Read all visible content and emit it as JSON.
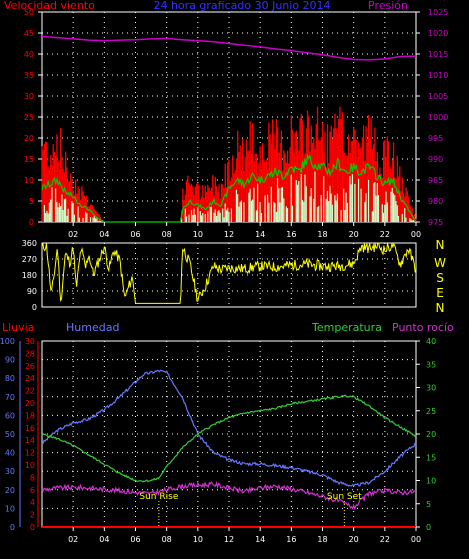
{
  "colors": {
    "wind": "#ff0000",
    "windAvg": "#00cc00",
    "windMin": "#ccffcc",
    "pressure": "#cc00cc",
    "title": "#3333ff",
    "humidity": "#6677ff",
    "temperature": "#33cc33",
    "dewpoint": "#cc33cc",
    "rain": "#ff0000",
    "direction": "#ffff00",
    "axisText": "#ffffff"
  },
  "header": {
    "left": "Velocidad viento",
    "center": "24 hora graficado  30 Junio 2014",
    "right": "Presión"
  },
  "middle": {
    "compass": [
      "N",
      "W",
      "S",
      "E",
      "N"
    ]
  },
  "bottom": {
    "left": "Lluvia",
    "left2": "Humedad",
    "right1": "Temperatura",
    "right2": "Punto rocío",
    "sunrise": "Sun Rise",
    "sunset": "Sun Set"
  },
  "chart_data": [
    {
      "type": "line",
      "name": "wind-pressure",
      "x_ticks": [
        "02",
        "04",
        "06",
        "08",
        "10",
        "12",
        "14",
        "16",
        "18",
        "20",
        "22",
        "00"
      ],
      "y_left_ticks": [
        0,
        5,
        10,
        15,
        20,
        25,
        30,
        35,
        40,
        45,
        50
      ],
      "y_right_ticks": [
        975,
        980,
        985,
        990,
        995,
        1000,
        1005,
        1010,
        1015,
        1020,
        1025
      ],
      "ylim_left": [
        0,
        50
      ],
      "ylim_right": [
        975,
        1025
      ],
      "xlim_hours": [
        0,
        24
      ],
      "grid": true,
      "series": [
        {
          "name": "Presión",
          "axis": "right",
          "x": [
            0,
            1,
            2,
            3,
            4,
            5,
            6,
            7,
            8,
            9,
            10,
            11,
            12,
            13,
            14,
            15,
            16,
            17,
            18,
            19,
            20,
            21,
            22,
            23,
            24
          ],
          "values": [
            1019.2,
            1018.9,
            1018.6,
            1018.3,
            1018.2,
            1018.3,
            1018.4,
            1018.6,
            1018.7,
            1018.4,
            1018.2,
            1017.9,
            1017.5,
            1017.1,
            1016.7,
            1016.2,
            1015.8,
            1015.3,
            1014.8,
            1014.2,
            1013.7,
            1013.6,
            1013.8,
            1014.4,
            1014.5
          ]
        },
        {
          "name": "gust",
          "axis": "left",
          "x": [
            0,
            0.5,
            1,
            1.5,
            2,
            2.5,
            3,
            3.5,
            4,
            8.9,
            9,
            9.5,
            10,
            10.5,
            11,
            11.5,
            12,
            12.5,
            13,
            13.5,
            14,
            14.5,
            15,
            15.5,
            16,
            16.5,
            17,
            17.5,
            18,
            18.5,
            19,
            19.5,
            20,
            20.5,
            21,
            21.5,
            22,
            22.5,
            23,
            23.5,
            24
          ],
          "values": [
            22,
            20,
            24,
            16,
            12,
            9,
            6,
            3,
            0,
            0,
            7,
            12,
            9,
            8,
            11,
            10,
            17,
            21,
            20,
            23,
            20,
            22,
            23,
            21,
            25,
            22,
            28,
            26,
            24,
            22,
            26,
            23,
            24,
            22,
            25,
            21,
            18,
            20,
            12,
            6,
            1
          ]
        },
        {
          "name": "average",
          "axis": "left",
          "x": [
            0,
            0.5,
            1,
            1.5,
            2,
            2.5,
            3,
            3.5,
            4,
            8.9,
            9,
            9.5,
            10,
            10.5,
            11,
            11.5,
            12,
            12.5,
            13,
            13.5,
            14,
            14.5,
            15,
            15.5,
            16,
            16.5,
            17,
            17.5,
            18,
            18.5,
            19,
            19.5,
            20,
            20.5,
            21,
            21.5,
            22,
            22.5,
            23,
            23.5,
            24
          ],
          "values": [
            8,
            9,
            10,
            7,
            6,
            4,
            3,
            1,
            0,
            0,
            3,
            5,
            4,
            3,
            5,
            4,
            8,
            10,
            9,
            11,
            10,
            11,
            12,
            11,
            13,
            12,
            15,
            14,
            13,
            12,
            14,
            12,
            13,
            12,
            13,
            11,
            9,
            10,
            6,
            3,
            0
          ]
        }
      ]
    },
    {
      "type": "line",
      "name": "wind-direction",
      "y_ticks": [
        0,
        90,
        180,
        270,
        360
      ],
      "ylim": [
        0,
        360
      ],
      "xlim_hours": [
        0,
        24
      ],
      "grid": true,
      "series": [
        {
          "name": "direction",
          "x": [
            0,
            0.3,
            0.6,
            1,
            1.2,
            1.5,
            1.8,
            2,
            2.2,
            2.5,
            2.8,
            3,
            3.3,
            3.6,
            4,
            4.3,
            4.6,
            5,
            5.3,
            5.8,
            6,
            7,
            8,
            8.9,
            9,
            9.2,
            9.5,
            10,
            10.5,
            11,
            11.5,
            12,
            13,
            14,
            15,
            16,
            17,
            18,
            19,
            20,
            20.5,
            21,
            21.5,
            22,
            22.5,
            23,
            23.5,
            24
          ],
          "values": [
            330,
            350,
            60,
            340,
            20,
            300,
            250,
            340,
            100,
            330,
            220,
            300,
            180,
            250,
            340,
            210,
            320,
            260,
            50,
            170,
            20,
            20,
            20,
            20,
            340,
            300,
            240,
            40,
            120,
            230,
            210,
            220,
            215,
            230,
            225,
            235,
            240,
            230,
            230,
            245,
            340,
            330,
            345,
            320,
            350,
            240,
            330,
            210
          ]
        }
      ]
    },
    {
      "type": "line",
      "name": "humidity-temperature",
      "x_ticks": [
        "02",
        "04",
        "06",
        "08",
        "10",
        "12",
        "14",
        "16",
        "18",
        "20",
        "22",
        "00"
      ],
      "y_humidity_ticks": [
        0,
        10,
        20,
        30,
        40,
        50,
        60,
        70,
        80,
        90,
        100
      ],
      "y_rain_ticks": [
        0,
        2,
        4,
        6,
        8,
        10,
        12,
        14,
        16,
        18,
        20,
        22,
        24,
        26,
        28,
        30
      ],
      "y_temp_ticks": [
        0,
        5,
        10,
        15,
        20,
        25,
        30,
        35,
        40
      ],
      "ylim_humidity": [
        0,
        100
      ],
      "ylim_temp": [
        0,
        40
      ],
      "ylim_rain": [
        0,
        30
      ],
      "xlim_hours": [
        0,
        24
      ],
      "grid": true,
      "series": [
        {
          "name": "Humedad",
          "axis": "humidity",
          "x": [
            0,
            1,
            2,
            3,
            4,
            5,
            6,
            6.5,
            7,
            7.5,
            8,
            9,
            10,
            11,
            12,
            13,
            14,
            15,
            16,
            17,
            18,
            19,
            19.5,
            20,
            21,
            22,
            23,
            24
          ],
          "values": [
            45,
            52,
            56,
            58,
            63,
            70,
            78,
            82,
            83,
            84,
            83,
            70,
            50,
            40,
            36,
            34,
            34,
            33,
            32,
            30,
            28,
            24,
            23,
            22,
            24,
            30,
            38,
            45
          ]
        },
        {
          "name": "Temperatura",
          "axis": "temp",
          "x": [
            0,
            1,
            2,
            3,
            4,
            5,
            6,
            6.5,
            7,
            7.5,
            8,
            9,
            10,
            11,
            12,
            13,
            14,
            15,
            16,
            17,
            18,
            19,
            19.5,
            20,
            21,
            22,
            23,
            24
          ],
          "values": [
            20,
            19,
            17.5,
            15.5,
            13.5,
            11.5,
            10,
            9.9,
            10,
            10.5,
            13,
            17,
            20,
            22,
            23.5,
            24.5,
            25,
            25.5,
            26.5,
            27,
            27.5,
            28,
            28.2,
            28,
            26,
            23.5,
            21.5,
            19.5
          ]
        },
        {
          "name": "Punto rocío",
          "axis": "temp",
          "x": [
            0,
            1,
            2,
            3,
            4,
            5,
            6,
            7,
            8,
            9,
            10,
            11,
            12,
            13,
            14,
            15,
            16,
            17,
            18,
            19,
            20,
            21,
            22,
            23,
            24
          ],
          "values": [
            8,
            8.4,
            8.5,
            8.4,
            8.1,
            7.8,
            7.4,
            7.2,
            8,
            8.8,
            9,
            9.2,
            8.4,
            7.6,
            8.4,
            8.8,
            8.2,
            7.4,
            6.6,
            5.6,
            4.2,
            7.2,
            7.8,
            7.4,
            7.6
          ]
        },
        {
          "name": "Lluvia",
          "axis": "rain",
          "x": [
            0,
            24
          ],
          "values": [
            0,
            0
          ]
        }
      ]
    }
  ]
}
